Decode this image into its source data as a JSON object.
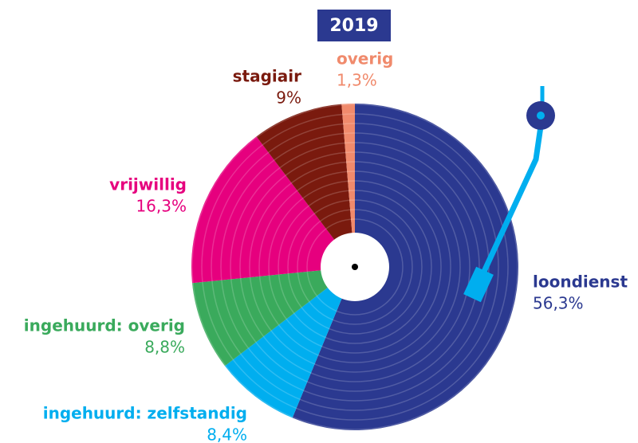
{
  "chart_data": {
    "type": "pie",
    "title": "2019",
    "categories": [
      "loondienst",
      "ingehuurd: zelfstandig",
      "ingehuurd: overig",
      "vrijwillig",
      "stagiair",
      "overig"
    ],
    "values": [
      56.3,
      8.4,
      8.8,
      16.3,
      9,
      1.3
    ],
    "value_labels": [
      "56,3%",
      "8,4%",
      "8,8%",
      "16,3%",
      "9%",
      "1,3%"
    ],
    "colors": [
      "#2b3990",
      "#00aeef",
      "#3aaa5c",
      "#e6007e",
      "#7a1a0e",
      "#f08a6c"
    ]
  }
}
